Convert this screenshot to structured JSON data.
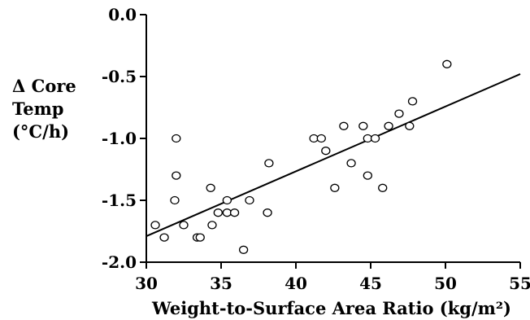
{
  "chart_data": {
    "type": "scatter",
    "title": "",
    "xlabel": "Weight-to-Surface Area Ratio (kg/m²)",
    "ylabel_lines": [
      "Δ Core",
      "Temp",
      "(°C/h)"
    ],
    "xlim": [
      30,
      55
    ],
    "ylim": [
      -2.0,
      0.0
    ],
    "x_ticks": [
      30,
      35,
      40,
      45,
      50,
      55
    ],
    "x_tick_labels": [
      "30",
      "35",
      "40",
      "45",
      "50",
      "55"
    ],
    "y_ticks": [
      0.0,
      -0.5,
      -1.0,
      -1.5,
      -2.0
    ],
    "y_tick_labels": [
      "0.0",
      "-0.5",
      "-1.0",
      "-1.5",
      "-2.0"
    ],
    "grid": false,
    "legend": "none",
    "colors": {
      "marker_stroke": "#000000",
      "line": "#000000",
      "axis": "#000000"
    },
    "points": [
      {
        "x": 30.6,
        "y": -1.7
      },
      {
        "x": 31.2,
        "y": -1.8
      },
      {
        "x": 31.9,
        "y": -1.5
      },
      {
        "x": 32.0,
        "y": -1.3
      },
      {
        "x": 32.0,
        "y": -1.0
      },
      {
        "x": 32.5,
        "y": -1.7
      },
      {
        "x": 33.4,
        "y": -1.8
      },
      {
        "x": 33.6,
        "y": -1.8
      },
      {
        "x": 34.3,
        "y": -1.4
      },
      {
        "x": 34.4,
        "y": -1.7
      },
      {
        "x": 34.8,
        "y": -1.6
      },
      {
        "x": 35.4,
        "y": -1.6
      },
      {
        "x": 35.4,
        "y": -1.5
      },
      {
        "x": 35.9,
        "y": -1.6
      },
      {
        "x": 36.5,
        "y": -1.9
      },
      {
        "x": 36.9,
        "y": -1.5
      },
      {
        "x": 38.1,
        "y": -1.6
      },
      {
        "x": 38.2,
        "y": -1.2
      },
      {
        "x": 41.2,
        "y": -1.0
      },
      {
        "x": 41.7,
        "y": -1.0
      },
      {
        "x": 42.0,
        "y": -1.1
      },
      {
        "x": 42.6,
        "y": -1.4
      },
      {
        "x": 43.2,
        "y": -0.9
      },
      {
        "x": 43.7,
        "y": -1.2
      },
      {
        "x": 44.5,
        "y": -0.9
      },
      {
        "x": 44.8,
        "y": -1.3
      },
      {
        "x": 44.8,
        "y": -1.0
      },
      {
        "x": 45.3,
        "y": -1.0
      },
      {
        "x": 45.8,
        "y": -1.4
      },
      {
        "x": 46.2,
        "y": -0.9
      },
      {
        "x": 46.9,
        "y": -0.8
      },
      {
        "x": 47.6,
        "y": -0.9
      },
      {
        "x": 47.8,
        "y": -0.7
      },
      {
        "x": 50.1,
        "y": -0.4
      }
    ],
    "trend_line": {
      "x": [
        30,
        55
      ],
      "y": [
        -1.79,
        -0.48
      ]
    }
  }
}
